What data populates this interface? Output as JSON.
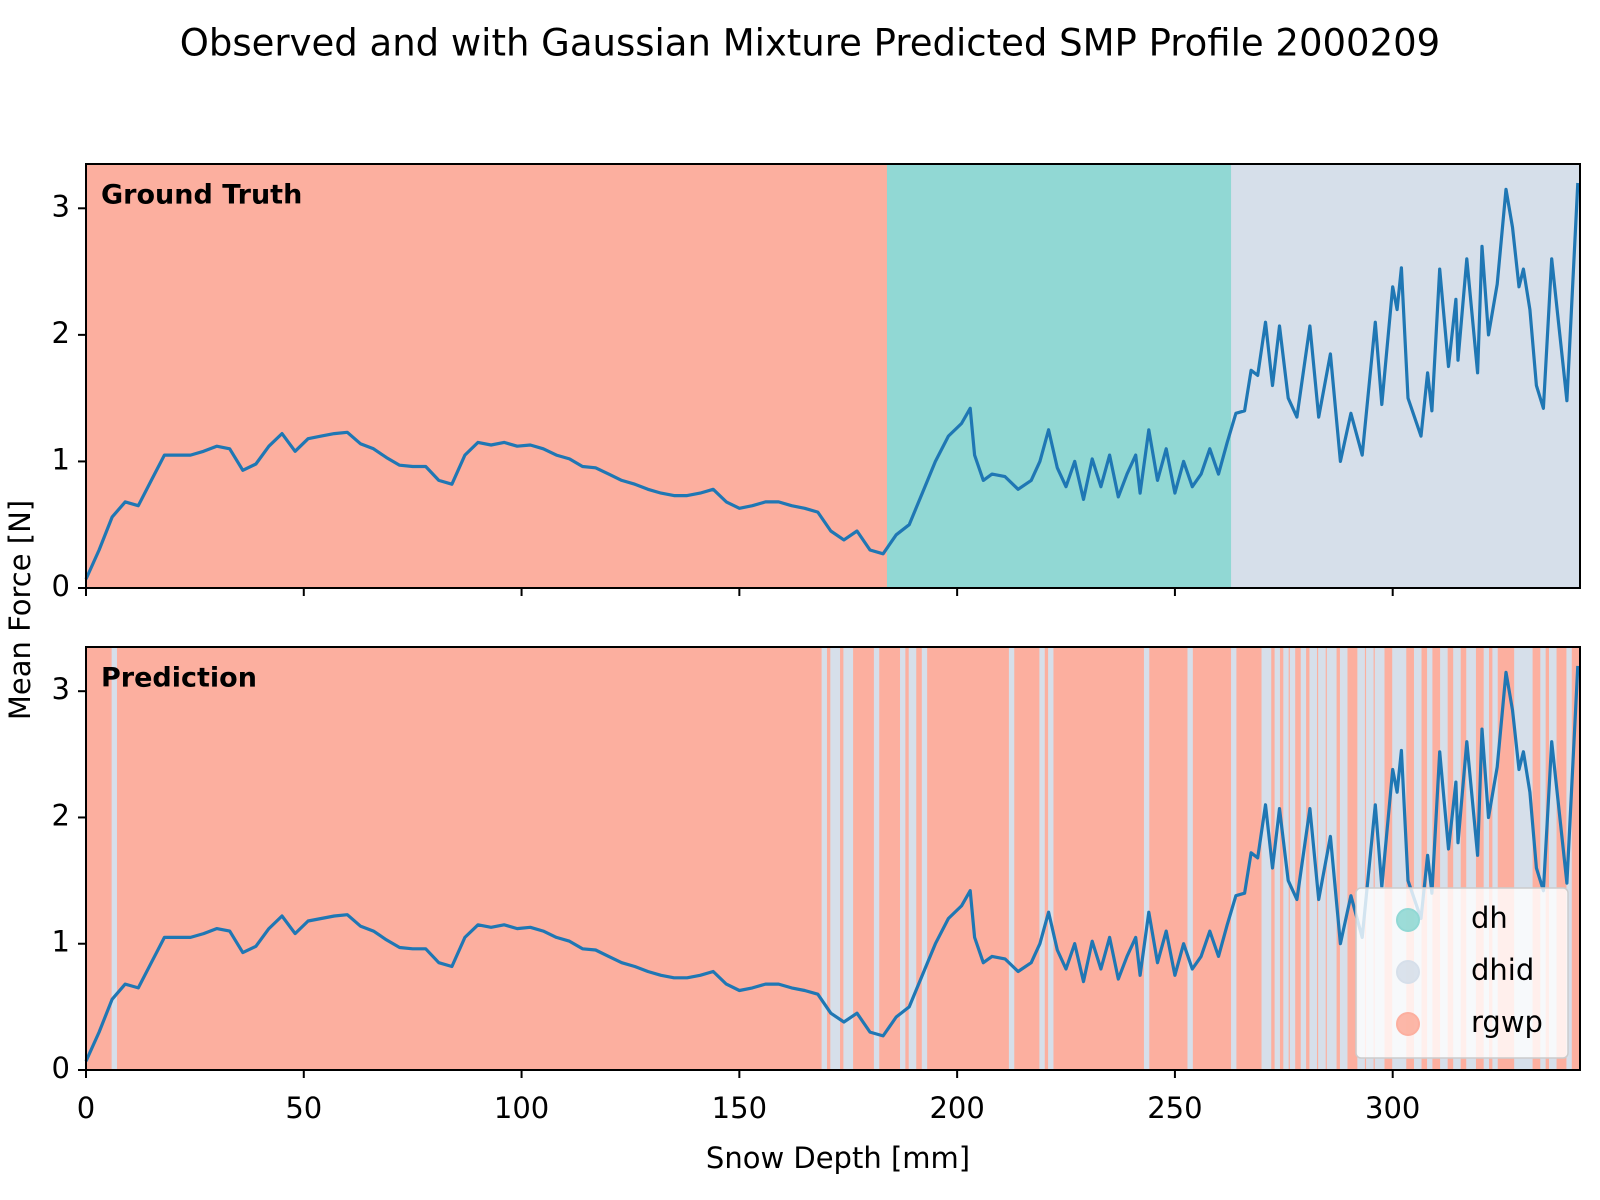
{
  "chart_data": {
    "type": "line",
    "title": "Observed and with Gaussian Mixture Predicted SMP Profile 2000209",
    "x_label": "Snow Depth [mm]",
    "y_label": "Mean Force [N]",
    "xlim": [
      0,
      343
    ],
    "xticks": [
      0,
      50,
      100,
      150,
      200,
      250,
      300
    ],
    "ylim": [
      0,
      3.35
    ],
    "yticks": [
      0,
      1,
      2,
      3
    ],
    "line_color": "#1f77b4",
    "classes": [
      {
        "name": "dh",
        "color": "#91d8d4"
      },
      {
        "name": "dhid",
        "color": "#d6dfea"
      },
      {
        "name": "rgwp",
        "color": "#fcaf9f"
      }
    ],
    "legend": "lower right",
    "x": [
      0,
      3,
      6,
      9,
      12,
      15,
      18,
      21,
      24,
      27,
      30,
      33,
      36,
      39,
      42,
      45,
      48,
      51,
      54,
      57,
      60,
      63,
      66,
      69,
      72,
      75,
      78,
      81,
      84,
      87,
      90,
      93,
      96,
      99,
      102,
      105,
      108,
      111,
      114,
      117,
      120,
      123,
      126,
      129,
      132,
      135,
      138,
      141,
      144,
      147,
      150,
      153,
      156,
      159,
      162,
      165,
      168,
      171,
      174,
      177,
      180,
      183,
      186,
      189,
      192,
      195,
      198,
      201,
      203,
      204,
      206,
      208,
      211,
      214,
      217,
      219,
      221,
      223,
      225,
      227,
      229,
      231,
      233,
      235,
      237,
      239,
      241,
      242,
      244,
      246,
      248,
      250,
      252,
      254,
      256,
      258,
      260,
      262,
      264,
      266,
      267.5,
      269,
      270.8,
      272.4,
      274,
      276,
      278,
      281,
      283,
      285.7,
      288,
      290.4,
      293,
      296,
      297.5,
      300,
      301,
      302,
      303.5,
      306.5,
      308,
      309,
      310.8,
      312.8,
      314.5,
      315,
      317,
      319.5,
      320.5,
      322,
      324,
      326,
      327.5,
      329,
      330,
      331.5,
      333,
      334.6,
      336.5,
      340,
      342.5
    ],
    "values": [
      0.07,
      0.3,
      0.56,
      0.68,
      0.65,
      0.85,
      1.05,
      1.05,
      1.05,
      1.08,
      1.12,
      1.1,
      0.93,
      0.98,
      1.12,
      1.22,
      1.08,
      1.18,
      1.2,
      1.22,
      1.23,
      1.14,
      1.1,
      1.03,
      0.97,
      0.96,
      0.96,
      0.85,
      0.82,
      1.05,
      1.15,
      1.13,
      1.15,
      1.12,
      1.13,
      1.1,
      1.05,
      1.02,
      0.96,
      0.95,
      0.9,
      0.85,
      0.82,
      0.78,
      0.75,
      0.73,
      0.73,
      0.75,
      0.78,
      0.68,
      0.63,
      0.65,
      0.68,
      0.68,
      0.65,
      0.63,
      0.6,
      0.45,
      0.38,
      0.45,
      0.3,
      0.27,
      0.42,
      0.5,
      0.75,
      1.0,
      1.2,
      1.3,
      1.42,
      1.05,
      0.85,
      0.9,
      0.88,
      0.78,
      0.85,
      1.0,
      1.25,
      0.95,
      0.8,
      1.0,
      0.7,
      1.02,
      0.8,
      1.05,
      0.72,
      0.9,
      1.05,
      0.75,
      1.25,
      0.85,
      1.1,
      0.75,
      1.0,
      0.8,
      0.9,
      1.1,
      0.9,
      1.15,
      1.38,
      1.4,
      1.72,
      1.68,
      2.1,
      1.6,
      2.07,
      1.5,
      1.35,
      2.07,
      1.35,
      1.85,
      1.0,
      1.38,
      1.05,
      2.1,
      1.45,
      2.38,
      2.2,
      2.53,
      1.5,
      1.2,
      1.7,
      1.4,
      2.52,
      1.75,
      2.28,
      1.8,
      2.6,
      1.7,
      2.7,
      2.0,
      2.4,
      3.15,
      2.85,
      2.38,
      2.52,
      2.2,
      1.6,
      1.42,
      2.6,
      1.48,
      3.2
    ],
    "panels": [
      {
        "label": "Ground Truth",
        "segments": [
          {
            "start": 0,
            "end": 184,
            "class": 2
          },
          {
            "start": 184,
            "end": 263,
            "class": 0
          },
          {
            "start": 263,
            "end": 343,
            "class": 1
          }
        ]
      },
      {
        "label": "Prediction",
        "segments": [
          {
            "start": 0,
            "end": 343,
            "class": 2
          },
          {
            "start": 6,
            "end": 7,
            "class": 1
          },
          {
            "start": 169,
            "end": 170,
            "class": 1
          },
          {
            "start": 171,
            "end": 173,
            "class": 1
          },
          {
            "start": 174,
            "end": 176,
            "class": 1
          },
          {
            "start": 181,
            "end": 182,
            "class": 1
          },
          {
            "start": 187,
            "end": 188,
            "class": 1
          },
          {
            "start": 189,
            "end": 190.5,
            "class": 1
          },
          {
            "start": 192,
            "end": 193,
            "class": 1
          },
          {
            "start": 212,
            "end": 213,
            "class": 1
          },
          {
            "start": 219,
            "end": 220,
            "class": 1
          },
          {
            "start": 221,
            "end": 222,
            "class": 1
          },
          {
            "start": 243,
            "end": 244,
            "class": 1
          },
          {
            "start": 253,
            "end": 254,
            "class": 1
          },
          {
            "start": 263,
            "end": 264,
            "class": 1
          },
          {
            "start": 270,
            "end": 272,
            "class": 1
          },
          {
            "start": 273,
            "end": 274,
            "class": 1
          },
          {
            "start": 275,
            "end": 276,
            "class": 1
          },
          {
            "start": 276.5,
            "end": 277.5,
            "class": 1
          },
          {
            "start": 279,
            "end": 280,
            "class": 1
          },
          {
            "start": 281,
            "end": 282.5,
            "class": 1
          },
          {
            "start": 283,
            "end": 284.5,
            "class": 1
          },
          {
            "start": 285,
            "end": 287,
            "class": 1
          },
          {
            "start": 288,
            "end": 289.5,
            "class": 1
          },
          {
            "start": 292,
            "end": 293.5,
            "class": 1
          },
          {
            "start": 294,
            "end": 295.5,
            "class": 1
          },
          {
            "start": 296,
            "end": 298,
            "class": 1
          },
          {
            "start": 300,
            "end": 303,
            "class": 1
          },
          {
            "start": 305,
            "end": 306.5,
            "class": 1
          },
          {
            "start": 308,
            "end": 309,
            "class": 1
          },
          {
            "start": 311,
            "end": 312.5,
            "class": 1
          },
          {
            "start": 314,
            "end": 315.5,
            "class": 1
          },
          {
            "start": 317,
            "end": 319,
            "class": 1
          },
          {
            "start": 321,
            "end": 322,
            "class": 1
          },
          {
            "start": 323,
            "end": 324,
            "class": 1
          },
          {
            "start": 328,
            "end": 332,
            "class": 1
          },
          {
            "start": 334,
            "end": 335,
            "class": 1
          },
          {
            "start": 336,
            "end": 337.5,
            "class": 1
          },
          {
            "start": 340,
            "end": 341,
            "class": 1
          }
        ]
      }
    ]
  }
}
